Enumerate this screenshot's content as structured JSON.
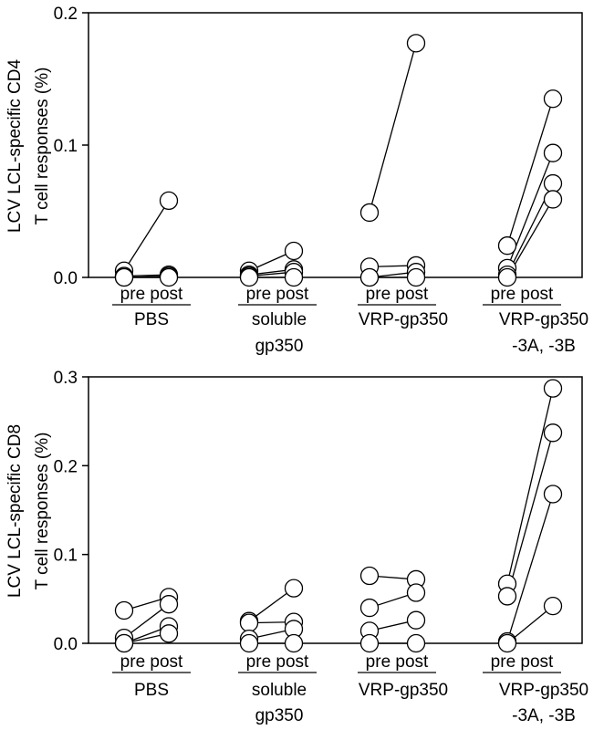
{
  "chart_data": [
    {
      "type": "scatter",
      "ylabel_lines": [
        "LCV LCL-specific CD4",
        "T cell responses (%)"
      ],
      "ylim": [
        0,
        0.2
      ],
      "yticks": [
        0.0,
        0.1,
        0.2
      ],
      "ytick_labels": [
        "0.0",
        "0.1",
        "0.2"
      ],
      "timepoint_label": "pre post",
      "groups": [
        {
          "name_lines": [
            "PBS"
          ],
          "pre": [
            0.005,
            0.001,
            0.0,
            0.0
          ],
          "post": [
            0.058,
            0.002,
            0.001,
            0.0
          ]
        },
        {
          "name_lines": [
            "soluble",
            "gp350"
          ],
          "pre": [
            0.005,
            0.002,
            0.001,
            0.0
          ],
          "post": [
            0.02,
            0.006,
            0.004,
            0.0
          ]
        },
        {
          "name_lines": [
            "VRP-gp350"
          ],
          "pre": [
            0.049,
            0.008,
            0.0,
            0.0
          ],
          "post": [
            0.177,
            0.009,
            0.004,
            0.0
          ]
        },
        {
          "name_lines": [
            "VRP-gp350",
            "-3A, -3B"
          ],
          "pre": [
            0.024,
            0.007,
            0.002,
            0.0
          ],
          "post": [
            0.135,
            0.094,
            0.071,
            0.059
          ]
        }
      ]
    },
    {
      "type": "scatter",
      "ylabel_lines": [
        "LCV LCL-specific CD8",
        "T cell responses (%)"
      ],
      "ylim": [
        0,
        0.3
      ],
      "yticks": [
        0.0,
        0.1,
        0.2,
        0.3
      ],
      "ytick_labels": [
        "0.0",
        "0.1",
        "0.2",
        "0.3"
      ],
      "timepoint_label": "pre post",
      "groups": [
        {
          "name_lines": [
            "PBS"
          ],
          "pre": [
            0.037,
            0.006,
            0.0,
            0.0
          ],
          "post": [
            0.052,
            0.044,
            0.019,
            0.011
          ]
        },
        {
          "name_lines": [
            "soluble",
            "gp350"
          ],
          "pre": [
            0.025,
            0.023,
            0.005,
            0.0
          ],
          "post": [
            0.062,
            0.024,
            0.016,
            0.0
          ]
        },
        {
          "name_lines": [
            "VRP-gp350"
          ],
          "pre": [
            0.076,
            0.04,
            0.014,
            0.0
          ],
          "post": [
            0.072,
            0.057,
            0.026,
            0.0
          ]
        },
        {
          "name_lines": [
            "VRP-gp350",
            "-3A, -3B"
          ],
          "pre": [
            0.067,
            0.053,
            0.002,
            0.0
          ],
          "post": [
            0.287,
            0.237,
            0.168,
            0.042
          ]
        }
      ]
    }
  ]
}
